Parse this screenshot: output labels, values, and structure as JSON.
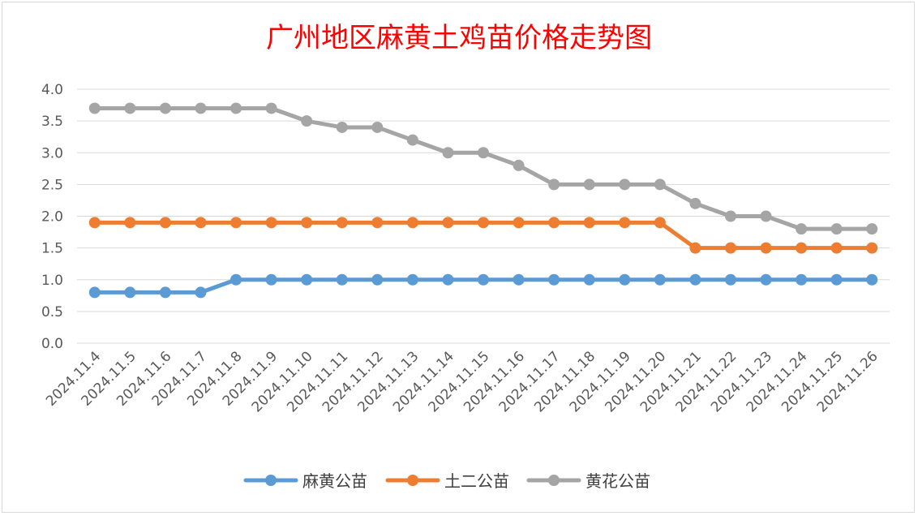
{
  "chart_data": {
    "type": "line",
    "title": "广州地区麻黄土鸡苗价格走势图",
    "xlabel": "",
    "ylabel": "",
    "ylim": [
      0,
      4
    ],
    "yticks": [
      "0.0",
      "0.5",
      "1.0",
      "1.5",
      "2.0",
      "2.5",
      "3.0",
      "3.5",
      "4.0"
    ],
    "grid": true,
    "legend_position": "bottom",
    "categories": [
      "2024.11.4",
      "2024.11.5",
      "2024.11.6",
      "2024.11.7",
      "2024.11.8",
      "2024.11.9",
      "2024.11.10",
      "2024.11.11",
      "2024.11.12",
      "2024.11.13",
      "2024.11.14",
      "2024.11.15",
      "2024.11.16",
      "2024.11.17",
      "2024.11.18",
      "2024.11.19",
      "2024.11.20",
      "2024.11.21",
      "2024.11.22",
      "2024.11.23",
      "2024.11.24",
      "2024.11.25",
      "2024.11.26"
    ],
    "series": [
      {
        "name": "麻黄公苗",
        "color": "#5b9bd5",
        "values": [
          0.8,
          0.8,
          0.8,
          0.8,
          1.0,
          1.0,
          1.0,
          1.0,
          1.0,
          1.0,
          1.0,
          1.0,
          1.0,
          1.0,
          1.0,
          1.0,
          1.0,
          1.0,
          1.0,
          1.0,
          1.0,
          1.0,
          1.0
        ]
      },
      {
        "name": "土二公苗",
        "color": "#ed7d31",
        "values": [
          1.9,
          1.9,
          1.9,
          1.9,
          1.9,
          1.9,
          1.9,
          1.9,
          1.9,
          1.9,
          1.9,
          1.9,
          1.9,
          1.9,
          1.9,
          1.9,
          1.9,
          1.5,
          1.5,
          1.5,
          1.5,
          1.5,
          1.5
        ]
      },
      {
        "name": "黄花公苗",
        "color": "#a5a5a5",
        "values": [
          3.7,
          3.7,
          3.7,
          3.7,
          3.7,
          3.7,
          3.5,
          3.4,
          3.4,
          3.2,
          3.0,
          3.0,
          2.8,
          2.5,
          2.5,
          2.5,
          2.5,
          2.2,
          2.0,
          2.0,
          1.8,
          1.8,
          1.8
        ]
      }
    ]
  }
}
